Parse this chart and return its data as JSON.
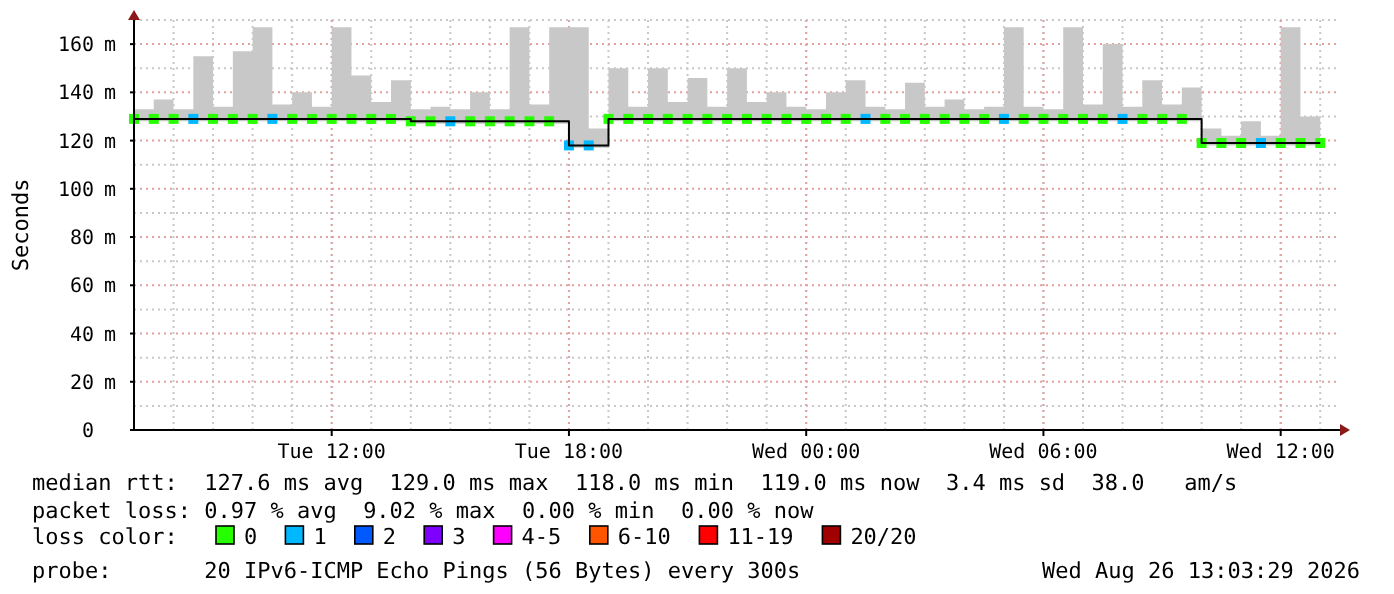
{
  "chart_data": {
    "type": "scatter",
    "ylabel": "Seconds",
    "legend_title": "loss color:",
    "legend": "bottom",
    "grid": true,
    "x": [
      "2026-08-25T07:00",
      "2026-08-25T07:30",
      "2026-08-25T08:00",
      "2026-08-25T08:30",
      "2026-08-25T09:00",
      "2026-08-25T09:30",
      "2026-08-25T10:00",
      "2026-08-25T10:30",
      "2026-08-25T11:00",
      "2026-08-25T11:30",
      "2026-08-25T12:00",
      "2026-08-25T12:30",
      "2026-08-25T13:00",
      "2026-08-25T13:30",
      "2026-08-25T14:00",
      "2026-08-25T14:30",
      "2026-08-25T15:00",
      "2026-08-25T15:30",
      "2026-08-25T16:00",
      "2026-08-25T16:30",
      "2026-08-25T17:00",
      "2026-08-25T17:30",
      "2026-08-25T18:00",
      "2026-08-25T18:30",
      "2026-08-25T19:00",
      "2026-08-25T19:30",
      "2026-08-25T20:00",
      "2026-08-25T20:30",
      "2026-08-25T21:00",
      "2026-08-25T21:30",
      "2026-08-25T22:00",
      "2026-08-25T22:30",
      "2026-08-25T23:00",
      "2026-08-25T23:30",
      "2026-08-26T00:00",
      "2026-08-26T00:30",
      "2026-08-26T01:00",
      "2026-08-26T01:30",
      "2026-08-26T02:00",
      "2026-08-26T02:30",
      "2026-08-26T03:00",
      "2026-08-26T03:30",
      "2026-08-26T04:00",
      "2026-08-26T04:30",
      "2026-08-26T05:00",
      "2026-08-26T05:30",
      "2026-08-26T06:00",
      "2026-08-26T06:30",
      "2026-08-26T07:00",
      "2026-08-26T07:30",
      "2026-08-26T08:00",
      "2026-08-26T08:30",
      "2026-08-26T09:00",
      "2026-08-26T09:30",
      "2026-08-26T10:00",
      "2026-08-26T10:30",
      "2026-08-26T11:00",
      "2026-08-26T11:30",
      "2026-08-26T12:00",
      "2026-08-26T12:30",
      "2026-08-26T13:00"
    ],
    "xlim": [
      "2026-08-25T07:00",
      "2026-08-26T13:30"
    ],
    "xticks": [
      {
        "value": "2026-08-25T12:00",
        "label": "Tue 12:00"
      },
      {
        "value": "2026-08-25T18:00",
        "label": "Tue 18:00"
      },
      {
        "value": "2026-08-26T00:00",
        "label": "Wed 00:00"
      },
      {
        "value": "2026-08-26T06:00",
        "label": "Wed 06:00"
      },
      {
        "value": "2026-08-26T12:00",
        "label": "Wed 12:00"
      }
    ],
    "ylim": [
      0,
      170
    ],
    "yticks": [
      0,
      {
        "value": 20,
        "label": "20 m"
      },
      {
        "value": 40,
        "label": "40 m"
      },
      {
        "value": 60,
        "label": "60 m"
      },
      {
        "value": 80,
        "label": "80 m"
      },
      {
        "value": 100,
        "label": "100 m"
      },
      {
        "value": 120,
        "label": "120 m"
      },
      {
        "value": 140,
        "label": "140 m"
      },
      {
        "value": 160,
        "label": "160 m"
      }
    ],
    "series": [
      {
        "type": "step",
        "color": "#000000",
        "values": [
          129,
          129,
          129,
          129,
          129,
          129,
          129,
          129,
          129,
          129,
          129,
          129,
          129,
          129,
          128,
          128,
          128,
          128,
          128,
          128,
          128,
          128,
          118,
          118,
          129,
          129,
          129,
          129,
          129,
          129,
          129,
          129,
          129,
          129,
          129,
          129,
          129,
          129,
          129,
          129,
          129,
          129,
          129,
          129,
          129,
          129,
          129,
          129,
          129,
          129,
          129,
          129,
          129,
          129,
          119,
          119,
          119,
          119,
          119,
          119,
          119
        ],
        "lower": [
          128,
          128,
          128,
          128,
          128,
          128,
          128,
          128,
          128,
          128,
          128,
          128,
          128,
          128,
          127,
          127,
          127,
          127,
          127,
          127,
          127,
          127,
          117,
          117,
          128,
          128,
          128,
          128,
          128,
          128,
          128,
          128,
          128,
          128,
          128,
          128,
          128,
          128,
          128,
          128,
          128,
          128,
          128,
          128,
          128,
          128,
          128,
          128,
          128,
          128,
          128,
          128,
          128,
          128,
          118,
          118,
          118,
          118,
          118,
          118,
          118
        ],
        "upper": [
          133,
          137,
          133,
          155,
          134,
          157,
          167,
          135,
          140,
          134,
          167,
          147,
          136,
          145,
          133,
          134,
          133,
          140,
          133,
          167,
          135,
          167,
          167,
          125,
          150,
          134,
          150,
          136,
          146,
          134,
          150,
          136,
          140,
          134,
          133,
          140,
          145,
          134,
          133,
          144,
          134,
          137,
          133,
          134,
          167,
          134,
          133,
          167,
          135,
          160,
          134,
          145,
          135,
          142,
          125,
          122,
          128,
          122,
          167,
          130,
          122
        ]
      },
      {
        "name": "0",
        "marker": "square",
        "color": "#26ff00",
        "values": [
          129,
          129,
          129,
          null,
          129,
          129,
          129,
          null,
          129,
          129,
          129,
          129,
          129,
          129,
          128,
          128,
          null,
          128,
          128,
          128,
          128,
          128,
          null,
          null,
          129,
          129,
          129,
          129,
          129,
          129,
          129,
          129,
          129,
          129,
          129,
          129,
          129,
          null,
          129,
          129,
          129,
          129,
          129,
          129,
          null,
          129,
          129,
          129,
          129,
          129,
          null,
          129,
          129,
          129,
          119,
          119,
          119,
          null,
          119,
          119,
          119
        ]
      },
      {
        "name": "1",
        "marker": "square",
        "color": "#00b8ff",
        "values": [
          null,
          null,
          null,
          129,
          null,
          null,
          null,
          129,
          null,
          null,
          null,
          null,
          null,
          null,
          null,
          null,
          128,
          null,
          null,
          null,
          null,
          null,
          118,
          118,
          null,
          null,
          null,
          null,
          null,
          null,
          null,
          null,
          null,
          null,
          null,
          null,
          null,
          129,
          null,
          null,
          null,
          null,
          null,
          null,
          129,
          null,
          null,
          null,
          null,
          null,
          129,
          null,
          null,
          null,
          null,
          null,
          null,
          119,
          null,
          null,
          null
        ]
      },
      {
        "name": "2",
        "marker": "square",
        "color": "#0059ff",
        "values": [
          null,
          null,
          null,
          null,
          null,
          null,
          null,
          null,
          null,
          null,
          null,
          null,
          null,
          null,
          null,
          null,
          null,
          null,
          null,
          null,
          null,
          null,
          null,
          null,
          null,
          null,
          null,
          null,
          null,
          null,
          null,
          null,
          null,
          null,
          null,
          null,
          null,
          null,
          null,
          null,
          null,
          null,
          null,
          null,
          null,
          null,
          null,
          null,
          null,
          null,
          null,
          null,
          null,
          null,
          null,
          null,
          null,
          null,
          null,
          null,
          null
        ]
      },
      {
        "name": "3",
        "marker": "square",
        "color": "#7e00ff",
        "values": [
          null,
          null,
          null,
          null,
          null,
          null,
          null,
          null,
          null,
          null,
          null,
          null,
          null,
          null,
          null,
          null,
          null,
          null,
          null,
          null,
          null,
          null,
          null,
          null,
          null,
          null,
          null,
          null,
          null,
          null,
          null,
          null,
          null,
          null,
          null,
          null,
          null,
          null,
          null,
          null,
          null,
          null,
          null,
          null,
          null,
          null,
          null,
          null,
          null,
          null,
          null,
          null,
          null,
          null,
          null,
          null,
          null,
          null,
          null,
          null,
          null
        ]
      },
      {
        "name": "4-5",
        "marker": "square",
        "color": "#ff00ff",
        "values": [
          null,
          null,
          null,
          null,
          null,
          null,
          null,
          null,
          null,
          null,
          null,
          null,
          null,
          null,
          null,
          null,
          null,
          null,
          null,
          null,
          null,
          null,
          null,
          null,
          null,
          null,
          null,
          null,
          null,
          null,
          null,
          null,
          null,
          null,
          null,
          null,
          null,
          null,
          null,
          null,
          null,
          null,
          null,
          null,
          null,
          null,
          null,
          null,
          null,
          null,
          null,
          null,
          null,
          null,
          null,
          null,
          null,
          null,
          null,
          null,
          null
        ]
      },
      {
        "name": "6-10",
        "marker": "square",
        "color": "#ff5500",
        "values": [
          null,
          null,
          null,
          null,
          null,
          null,
          null,
          null,
          null,
          null,
          null,
          null,
          null,
          null,
          null,
          null,
          null,
          null,
          null,
          null,
          null,
          null,
          null,
          null,
          null,
          null,
          null,
          null,
          null,
          null,
          null,
          null,
          null,
          null,
          null,
          null,
          null,
          null,
          null,
          null,
          null,
          null,
          null,
          null,
          null,
          null,
          null,
          null,
          null,
          null,
          null,
          null,
          null,
          null,
          null,
          null,
          null,
          null,
          null,
          null,
          null
        ]
      },
      {
        "name": "11-19",
        "marker": "square",
        "color": "#ff0000",
        "values": [
          null,
          null,
          null,
          null,
          null,
          null,
          null,
          null,
          null,
          null,
          null,
          null,
          null,
          null,
          null,
          null,
          null,
          null,
          null,
          null,
          null,
          null,
          null,
          null,
          null,
          null,
          null,
          null,
          null,
          null,
          null,
          null,
          null,
          null,
          null,
          null,
          null,
          null,
          null,
          null,
          null,
          null,
          null,
          null,
          null,
          null,
          null,
          null,
          null,
          null,
          null,
          null,
          null,
          null,
          null,
          null,
          null,
          null,
          null,
          null,
          null
        ]
      },
      {
        "name": "20/20",
        "marker": "square",
        "color": "#a10000",
        "values": [
          null,
          null,
          null,
          null,
          null,
          null,
          null,
          null,
          null,
          null,
          null,
          null,
          null,
          null,
          null,
          null,
          null,
          null,
          null,
          null,
          null,
          null,
          null,
          null,
          null,
          null,
          null,
          null,
          null,
          null,
          null,
          null,
          null,
          null,
          null,
          null,
          null,
          null,
          null,
          null,
          null,
          null,
          null,
          null,
          null,
          null,
          null,
          null,
          null,
          null,
          null,
          null,
          null,
          null,
          null,
          null,
          null,
          null,
          null,
          null,
          null
        ]
      }
    ],
    "annotations": [
      "median rtt:  127.6 ms avg  129.0 ms max  118.0 ms min  119.0 ms now  3.4 ms sd  38.0   am/s",
      "packet loss: 0.97 % avg  9.02 % max  0.00 % min  0.00 % now",
      "probe:       20 IPv6-ICMP Echo Pings (56 Bytes) every 300s",
      "Wed Aug 26 13:03:29 2026"
    ]
  }
}
